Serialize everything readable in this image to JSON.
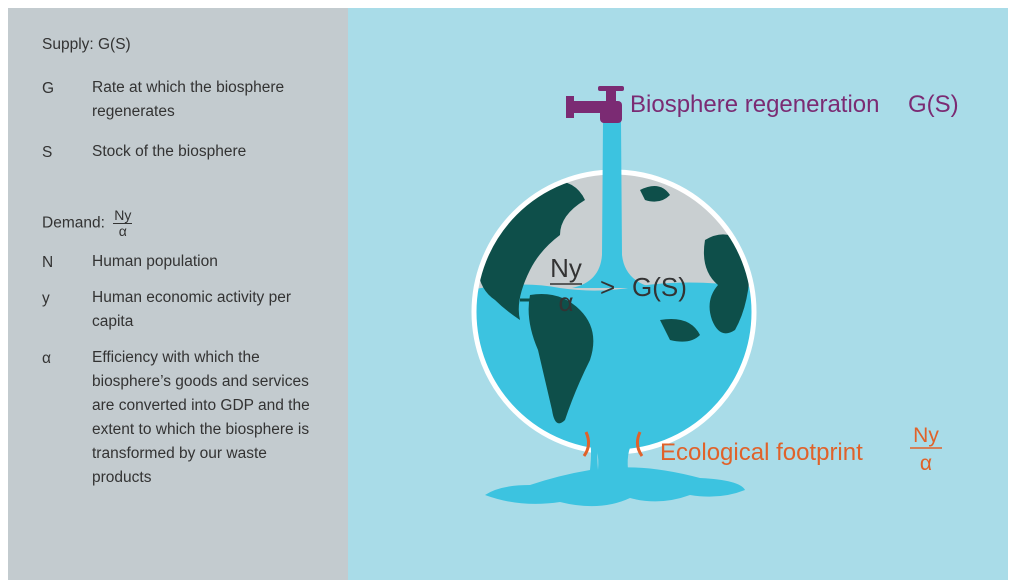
{
  "supply": {
    "label": "Supply: G(S)",
    "terms": [
      {
        "symbol": "G",
        "definition": "Rate at which the biosphere regenerates"
      },
      {
        "symbol": "S",
        "definition": "Stock of the biosphere"
      }
    ]
  },
  "demand": {
    "label": "Demand:",
    "numerator": "Ny",
    "denominator": "α",
    "terms": [
      {
        "symbol": "N",
        "definition": "Human population"
      },
      {
        "symbol": "y",
        "definition": "Human economic activity per capita"
      },
      {
        "symbol": "α",
        "definition": "Efficiency with which the biosphere’s goods and services are converted into GDP and the extent to which the biosphere is transformed by our waste products"
      }
    ]
  },
  "tap_label": {
    "text": "Biosphere regeneration",
    "formula": "G(S)"
  },
  "inequality": {
    "numerator": "Ny",
    "denominator": "α",
    "operator": ">",
    "rhs": "G(S)"
  },
  "footprint_label": {
    "text": "Ecological footprint",
    "numerator": "Ny",
    "denominator": "α"
  }
}
